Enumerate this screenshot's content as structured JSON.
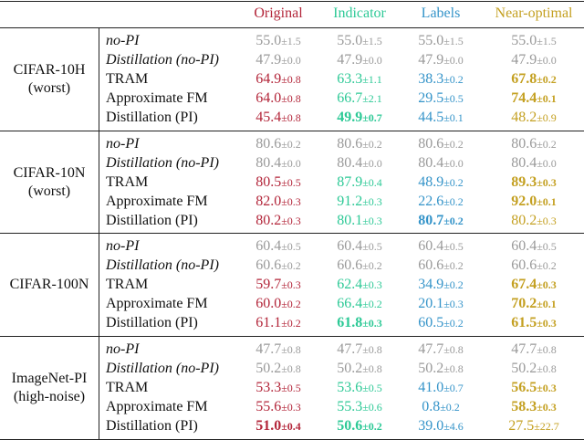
{
  "table": {
    "columns": [
      {
        "label": "Original",
        "color": "#b3263a"
      },
      {
        "label": "Indicator",
        "color": "#2dc996"
      },
      {
        "label": "Labels",
        "color": "#3594c9"
      },
      {
        "label": "Near-optimal",
        "color": "#c4a021"
      }
    ],
    "muted_color": "#9a9a9a",
    "groups": [
      {
        "dataset": [
          "CIFAR-10H",
          "(worst)"
        ],
        "rows": [
          {
            "method": "no-PI",
            "italic": true,
            "muted": true,
            "cells": [
              {
                "mean": "55.0",
                "std": "±1.5"
              },
              {
                "mean": "55.0",
                "std": "±1.5"
              },
              {
                "mean": "55.0",
                "std": "±1.5"
              },
              {
                "mean": "55.0",
                "std": "±1.5"
              }
            ]
          },
          {
            "method": "Distillation (no-PI)",
            "italic": true,
            "muted": true,
            "cells": [
              {
                "mean": "47.9",
                "std": "±0.0"
              },
              {
                "mean": "47.9",
                "std": "±0.0"
              },
              {
                "mean": "47.9",
                "std": "±0.0"
              },
              {
                "mean": "47.9",
                "std": "±0.0"
              }
            ]
          },
          {
            "method": "TRAM",
            "cells": [
              {
                "mean": "64.9",
                "std": "±0.8"
              },
              {
                "mean": "63.3",
                "std": "±1.1"
              },
              {
                "mean": "38.3",
                "std": "±0.2"
              },
              {
                "mean": "67.8",
                "std": "±0.2",
                "bold": true
              }
            ]
          },
          {
            "method": "Approximate FM",
            "cells": [
              {
                "mean": "64.0",
                "std": "±0.8"
              },
              {
                "mean": "66.7",
                "std": "±2.1"
              },
              {
                "mean": "29.5",
                "std": "±0.5"
              },
              {
                "mean": "74.4",
                "std": "±0.1",
                "bold": true
              }
            ]
          },
          {
            "method": "Distillation (PI)",
            "cells": [
              {
                "mean": "45.4",
                "std": "±0.8"
              },
              {
                "mean": "49.9",
                "std": "±0.7",
                "bold": true
              },
              {
                "mean": "44.5",
                "std": "±0.1"
              },
              {
                "mean": "48.2",
                "std": "±0.9"
              }
            ]
          }
        ]
      },
      {
        "dataset": [
          "CIFAR-10N",
          "(worst)"
        ],
        "rows": [
          {
            "method": "no-PI",
            "italic": true,
            "muted": true,
            "cells": [
              {
                "mean": "80.6",
                "std": "±0.2"
              },
              {
                "mean": "80.6",
                "std": "±0.2"
              },
              {
                "mean": "80.6",
                "std": "±0.2"
              },
              {
                "mean": "80.6",
                "std": "±0.2"
              }
            ]
          },
          {
            "method": "Distillation (no-PI)",
            "italic": true,
            "muted": true,
            "cells": [
              {
                "mean": "80.4",
                "std": "±0.0"
              },
              {
                "mean": "80.4",
                "std": "±0.0"
              },
              {
                "mean": "80.4",
                "std": "±0.0"
              },
              {
                "mean": "80.4",
                "std": "±0.0"
              }
            ]
          },
          {
            "method": "TRAM",
            "cells": [
              {
                "mean": "80.5",
                "std": "±0.5"
              },
              {
                "mean": "87.9",
                "std": "±0.4"
              },
              {
                "mean": "48.9",
                "std": "±0.2"
              },
              {
                "mean": "89.3",
                "std": "±0.3",
                "bold": true
              }
            ]
          },
          {
            "method": "Approximate FM",
            "cells": [
              {
                "mean": "82.0",
                "std": "±0.3"
              },
              {
                "mean": "91.2",
                "std": "±0.3"
              },
              {
                "mean": "22.6",
                "std": "±0.2"
              },
              {
                "mean": "92.0",
                "std": "±0.1",
                "bold": true
              }
            ]
          },
          {
            "method": "Distillation (PI)",
            "cells": [
              {
                "mean": "80.2",
                "std": "±0.3"
              },
              {
                "mean": "80.1",
                "std": "±0.3"
              },
              {
                "mean": "80.7",
                "std": "±0.2",
                "bold": true
              },
              {
                "mean": "80.2",
                "std": "±0.3"
              }
            ]
          }
        ]
      },
      {
        "dataset": [
          "CIFAR-100N"
        ],
        "rows": [
          {
            "method": "no-PI",
            "italic": true,
            "muted": true,
            "cells": [
              {
                "mean": "60.4",
                "std": "±0.5"
              },
              {
                "mean": "60.4",
                "std": "±0.5"
              },
              {
                "mean": "60.4",
                "std": "±0.5"
              },
              {
                "mean": "60.4",
                "std": "±0.5"
              }
            ]
          },
          {
            "method": "Distillation (no-PI)",
            "italic": true,
            "muted": true,
            "cells": [
              {
                "mean": "60.6",
                "std": "±0.2"
              },
              {
                "mean": "60.6",
                "std": "±0.2"
              },
              {
                "mean": "60.6",
                "std": "±0.2"
              },
              {
                "mean": "60.6",
                "std": "±0.2"
              }
            ]
          },
          {
            "method": "TRAM",
            "cells": [
              {
                "mean": "59.7",
                "std": "±0.3"
              },
              {
                "mean": "62.4",
                "std": "±0.3"
              },
              {
                "mean": "34.9",
                "std": "±0.2"
              },
              {
                "mean": "67.4",
                "std": "±0.3",
                "bold": true
              }
            ]
          },
          {
            "method": "Approximate FM",
            "cells": [
              {
                "mean": "60.0",
                "std": "±0.2"
              },
              {
                "mean": "66.4",
                "std": "±0.2"
              },
              {
                "mean": "20.1",
                "std": "±0.3"
              },
              {
                "mean": "70.2",
                "std": "±0.1",
                "bold": true
              }
            ]
          },
          {
            "method": "Distillation (PI)",
            "cells": [
              {
                "mean": "61.1",
                "std": "±0.2"
              },
              {
                "mean": "61.8",
                "std": "±0.3",
                "bold": true
              },
              {
                "mean": "60.5",
                "std": "±0.2"
              },
              {
                "mean": "61.5",
                "std": "±0.3",
                "bold": true
              }
            ]
          }
        ]
      },
      {
        "dataset": [
          "ImageNet-PI",
          "(high-noise)"
        ],
        "rows": [
          {
            "method": "no-PI",
            "italic": true,
            "muted": true,
            "cells": [
              {
                "mean": "47.7",
                "std": "±0.8"
              },
              {
                "mean": "47.7",
                "std": "±0.8"
              },
              {
                "mean": "47.7",
                "std": "±0.8"
              },
              {
                "mean": "47.7",
                "std": "±0.8"
              }
            ]
          },
          {
            "method": "Distillation (no-PI)",
            "italic": true,
            "muted": true,
            "cells": [
              {
                "mean": "50.2",
                "std": "±0.8"
              },
              {
                "mean": "50.2",
                "std": "±0.8"
              },
              {
                "mean": "50.2",
                "std": "±0.8"
              },
              {
                "mean": "50.2",
                "std": "±0.8"
              }
            ]
          },
          {
            "method": "TRAM",
            "cells": [
              {
                "mean": "53.3",
                "std": "±0.5"
              },
              {
                "mean": "53.6",
                "std": "±0.5"
              },
              {
                "mean": "41.0",
                "std": "±0.7"
              },
              {
                "mean": "56.5",
                "std": "±0.3",
                "bold": true
              }
            ]
          },
          {
            "method": "Approximate FM",
            "cells": [
              {
                "mean": "55.6",
                "std": "±0.3"
              },
              {
                "mean": "55.3",
                "std": "±0.6"
              },
              {
                "mean": "0.8",
                "std": "±0.2"
              },
              {
                "mean": "58.3",
                "std": "±0.3",
                "bold": true
              }
            ]
          },
          {
            "method": "Distillation (PI)",
            "cells": [
              {
                "mean": "51.0",
                "std": "±0.4",
                "bold": true
              },
              {
                "mean": "50.6",
                "std": "±0.2",
                "bold": true
              },
              {
                "mean": "39.0",
                "std": "±4.6"
              },
              {
                "mean": "27.5",
                "std": "±22.7"
              }
            ]
          }
        ]
      }
    ]
  }
}
